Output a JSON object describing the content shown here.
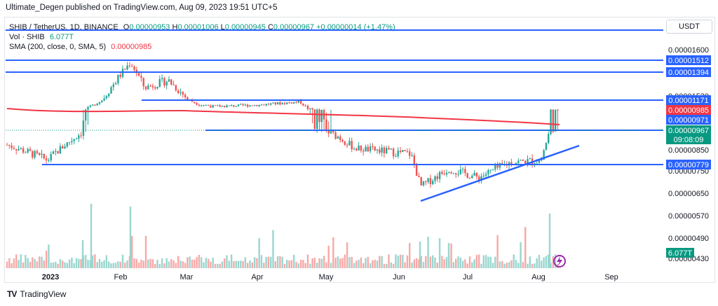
{
  "header": {
    "publisher_line": "Ultimate_Degen published on TradingView.com, Aug 09, 2023 19:51 UTC+5"
  },
  "legend": {
    "symbol": "SHIB / TetherUS, 1D, BINANCE",
    "o_label": "O",
    "o_value": "0.00000953",
    "h_label": "H",
    "h_value": "0.00001006",
    "l_label": "L",
    "l_value": "0.00000945",
    "c_label": "C",
    "c_value": "0.00000967",
    "change": "+0.00000014 (+1.47%)",
    "vol_label": "Vol · SHIB",
    "vol_value": "6.077T",
    "sma_label": "SMA (200, close, 0, SMA, 5)",
    "sma_value": "0.00000985"
  },
  "currency_button": "USDT",
  "footer": {
    "brand": "TradingView",
    "logo": "TV"
  },
  "colors": {
    "up": "#26a69a",
    "down": "#ef5350",
    "sma": "#f23645",
    "level": "#2962ff",
    "vol_up": "#9ad6cf",
    "vol_down": "#f7a9a7"
  },
  "chart_data": {
    "type": "candlestick",
    "symbol": "SHIB / TetherUS",
    "interval": "1D",
    "exchange": "BINANCE",
    "y_range": [
      4.2e-06,
      1.65e-05
    ],
    "y_ticks": [
      "0.00001600",
      "0.00001530",
      "0.00000850",
      "0.00000750",
      "0.00000650",
      "0.00000570",
      "0.00000490",
      "0.00000430"
    ],
    "x_ticks": [
      "2023",
      "Feb",
      "Mar",
      "Apr",
      "May",
      "Jun",
      "Jul",
      "Aug",
      "Sep"
    ],
    "horizontal_levels": [
      {
        "label": "0.00001512",
        "value": 1.512e-05,
        "from": "Dec 2022",
        "to": "axis"
      },
      {
        "label": "0.00001394",
        "value": 1.394e-05,
        "from": "Dec 2022",
        "to": "axis"
      },
      {
        "label": "0.00001171",
        "value": 1.171e-05,
        "from": "Feb 2023",
        "to": "axis"
      },
      {
        "label": "0.00000971",
        "value": 9.71e-06,
        "from": "Mar 2023",
        "to": "axis"
      },
      {
        "label": "0.00000779",
        "value": 7.79e-06,
        "from": "Jan 2023",
        "to": "axis"
      }
    ],
    "resistance_top_value": 1.87e-05,
    "trendline": {
      "from": [
        "Jun 10",
        6.15e-06
      ],
      "to": [
        "Aug 17",
        8.68e-06
      ]
    },
    "price_labels": [
      {
        "label": "0.00001171",
        "color": "#2962ff"
      },
      {
        "label": "0.00000985",
        "color": "#f23645"
      },
      {
        "label": "0.00000971",
        "color": "#2962ff"
      },
      {
        "label": "0.00000967",
        "color": "#089981"
      },
      {
        "label": "09:08:09",
        "color": "#089981"
      },
      {
        "label": "0.00000779",
        "color": "#2962ff"
      },
      {
        "label": "6.077T",
        "color": "#089981"
      }
    ],
    "sma200_anchors": [
      {
        "date": "Dec 2022",
        "value": 1.115e-05
      },
      {
        "date": "Jan 2023",
        "value": 1.085e-05
      },
      {
        "date": "Feb",
        "value": 1.1e-05
      },
      {
        "date": "Mar",
        "value": 1.07e-05
      },
      {
        "date": "Apr",
        "value": 1.065e-05
      },
      {
        "date": "May",
        "value": 1.055e-05
      },
      {
        "date": "Jun",
        "value": 1.03e-05
      },
      {
        "date": "Jul",
        "value": 1.005e-05
      },
      {
        "date": "Aug 9",
        "value": 9.85e-06
      }
    ],
    "close_anchors": [
      {
        "date": "Dec 2022",
        "value": 8.8e-06
      },
      {
        "date": "Dec 31",
        "value": 8e-06
      },
      {
        "date": "Jan 15",
        "value": 9.6e-06
      },
      {
        "date": "Jan 28",
        "value": 1.27e-05
      },
      {
        "date": "Feb 1",
        "value": 1.4e-05
      },
      {
        "date": "Feb 4",
        "value": 1.49e-05
      },
      {
        "date": "Feb 10",
        "value": 1.27e-05
      },
      {
        "date": "Feb 20",
        "value": 1.33e-05
      },
      {
        "date": "Mar 5",
        "value": 1.09e-05
      },
      {
        "date": "Mar 12",
        "value": 1.05e-05
      },
      {
        "date": "Apr 1",
        "value": 1.08e-05
      },
      {
        "date": "Apr 20",
        "value": 1.14e-05
      },
      {
        "date": "Apr 25",
        "value": 1e-05
      },
      {
        "date": "May 5",
        "value": 9.3e-06
      },
      {
        "date": "May 12",
        "value": 8.6e-06
      },
      {
        "date": "Jun 5",
        "value": 8.3e-06
      },
      {
        "date": "Jun 10",
        "value": 6.8e-06
      },
      {
        "date": "Jun 25",
        "value": 7.6e-06
      },
      {
        "date": "Jul 5",
        "value": 7.2e-06
      },
      {
        "date": "Jul 20",
        "value": 7.9e-06
      },
      {
        "date": "Aug 1",
        "value": 8e-06
      },
      {
        "date": "Aug 5",
        "value": 9.9e-06
      },
      {
        "date": "Aug 9",
        "value": 9.67e-06
      }
    ],
    "volume_last": "6.077T"
  }
}
